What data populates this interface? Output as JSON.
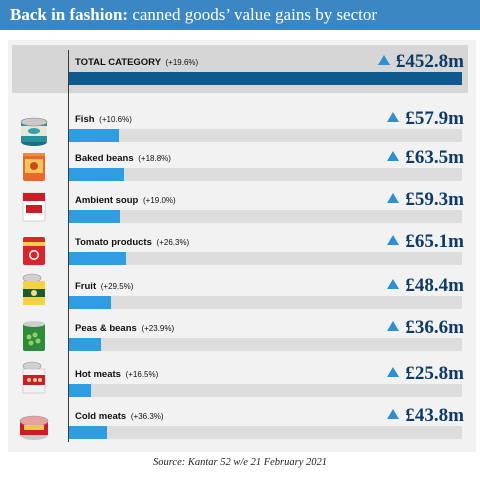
{
  "title": {
    "bold": "Back in fashion:",
    "rest": " canned goods’ value gains by sector"
  },
  "source": "Source: Kantar 52 w/e 21 February 2021",
  "colors": {
    "header": "#3a87c4",
    "bar": "#2f9de0",
    "total_bar": "#0f5a8c",
    "value_text": "#0d3b66",
    "arrow": "#2f8fd0"
  },
  "chart_data": {
    "type": "bar",
    "orientation": "horizontal",
    "title": "Back in fashion: canned goods’ value gains by sector",
    "unit": "£m",
    "xlim": [
      0,
      452.8
    ],
    "total": {
      "category": "TOTAL CATEGORY",
      "change": "(+19.6%)",
      "value": 452.8,
      "label": "£452.8m"
    },
    "categories": [
      "Fish",
      "Baked beans",
      "Ambient soup",
      "Tomato products",
      "Fruit",
      "Peas & beans",
      "Hot meats",
      "Cold meats"
    ],
    "changes": [
      "(+10.6%)",
      "(+18.8%)",
      "(+19.0%)",
      "(+26.3%)",
      "(+29.5%)",
      "(+23.9%)",
      "(+16.5%)",
      "(+36.3%)"
    ],
    "values": [
      57.9,
      63.5,
      59.3,
      65.1,
      48.4,
      36.6,
      25.8,
      43.8
    ],
    "value_labels": [
      "£57.9m",
      "£63.5m",
      "£59.3m",
      "£65.1m",
      "£48.4m",
      "£36.6m",
      "£25.8m",
      "£43.8m"
    ],
    "icons": [
      "fish-can-icon",
      "baked-beans-can-icon",
      "soup-can-icon",
      "tomato-can-icon",
      "fruit-can-icon",
      "peas-can-icon",
      "hot-meat-can-icon",
      "cold-meat-can-icon"
    ],
    "source": "Source: Kantar 52 w/e 21 February 2021"
  }
}
